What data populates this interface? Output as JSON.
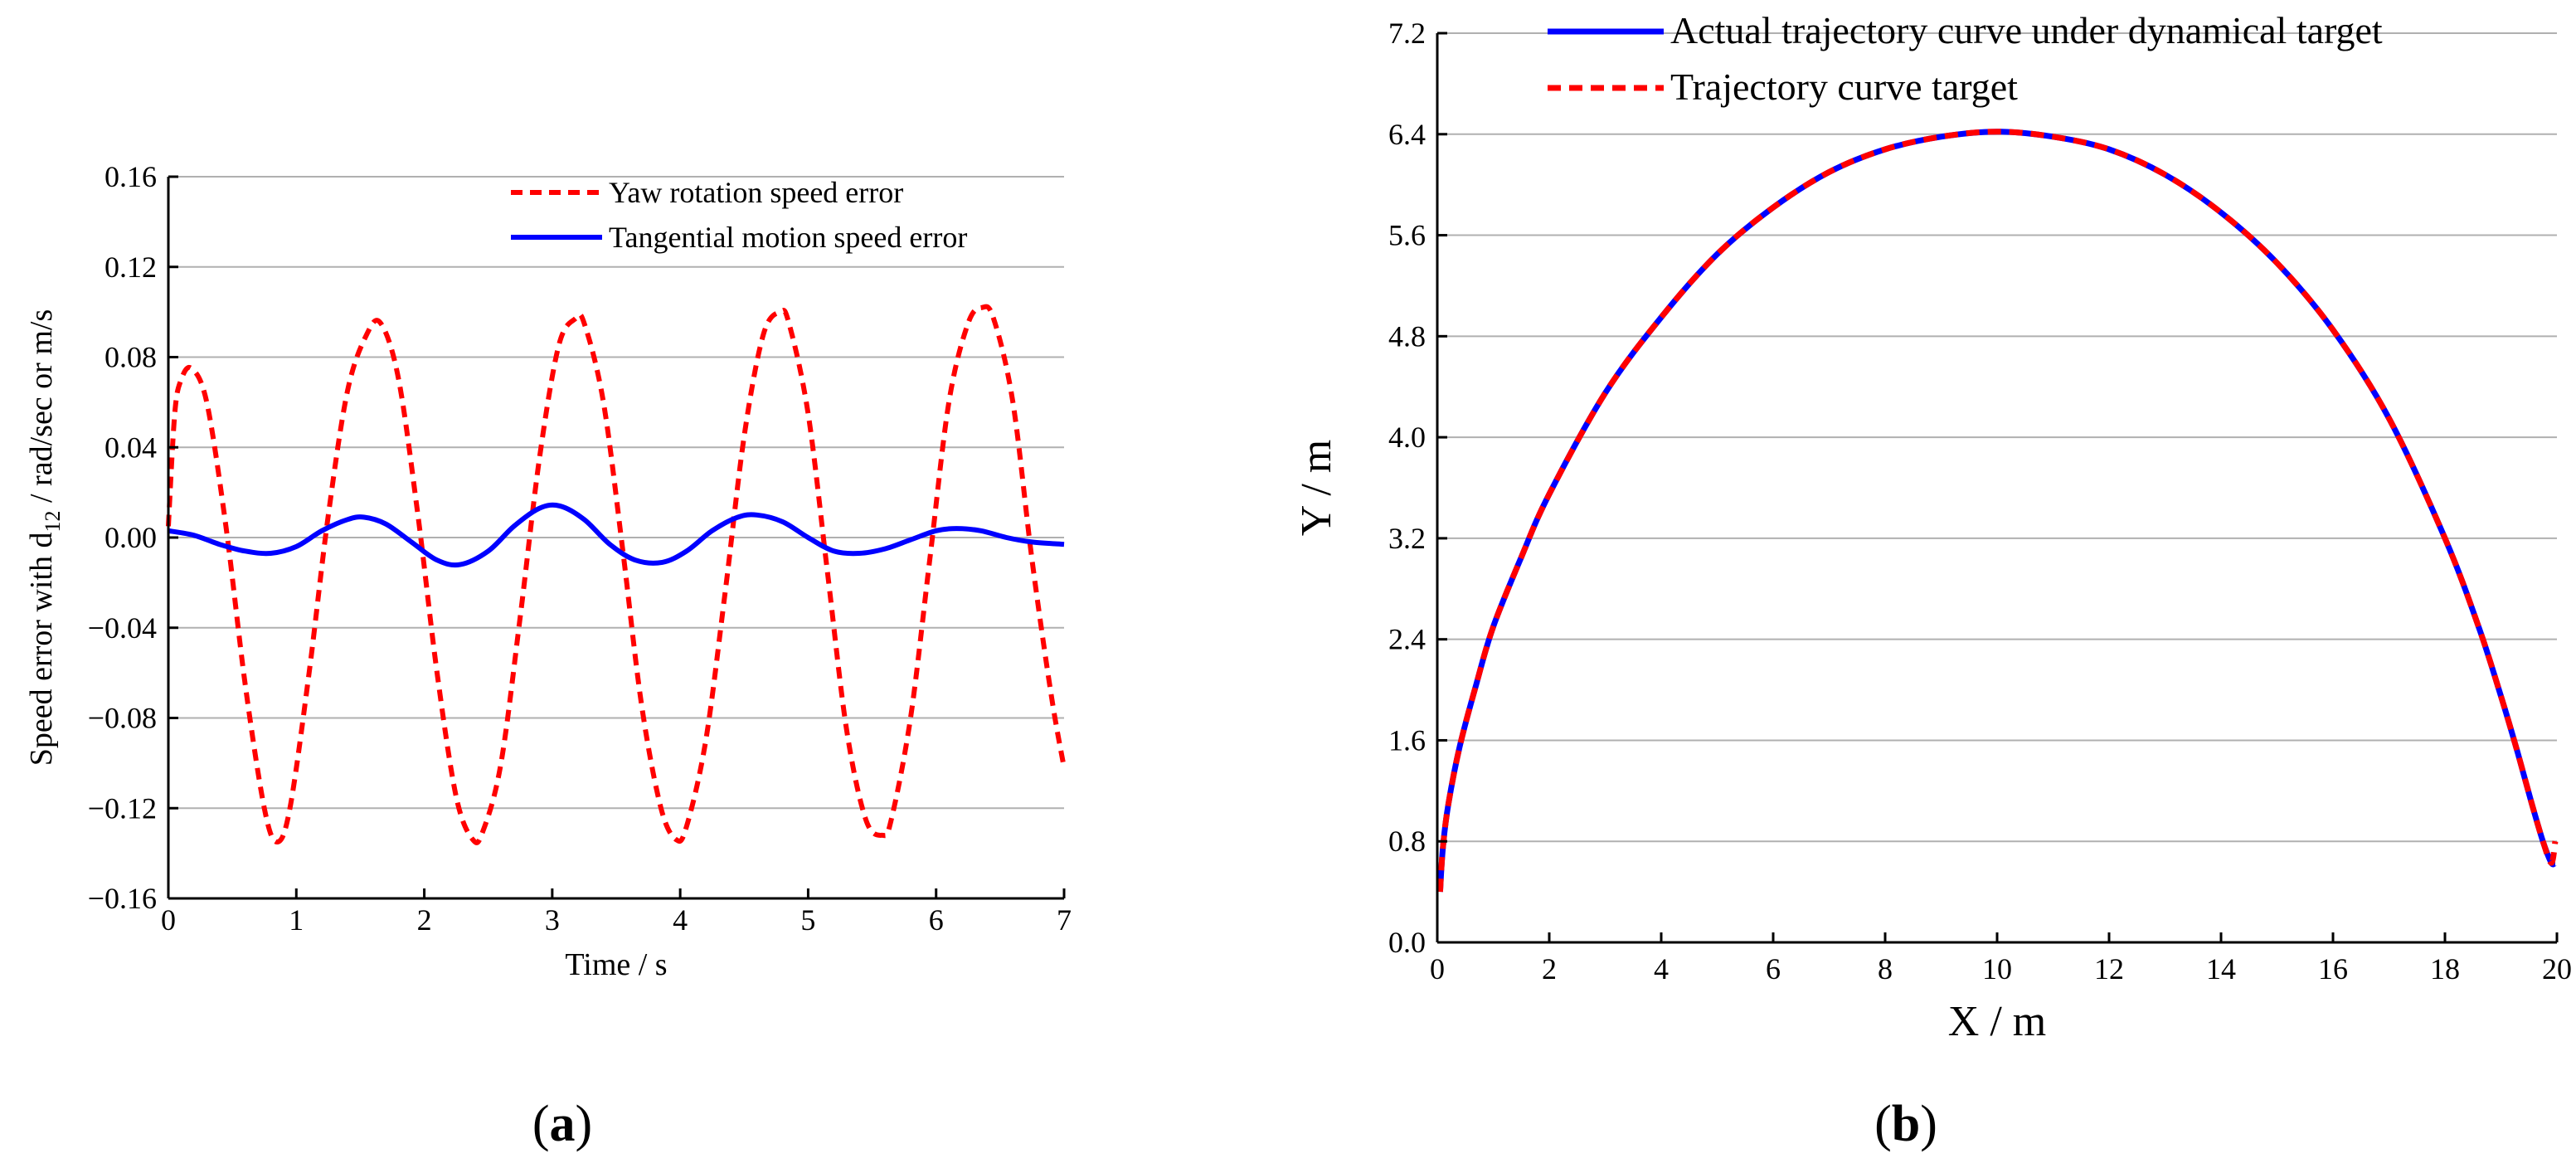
{
  "chart_data": [
    {
      "id": "a",
      "type": "line",
      "caption": "a",
      "xlabel": "Time / s",
      "ylabel_prefix": "Speed error  with  d",
      "ylabel_sub": "12",
      "ylabel_suffix": "  / rad/sec or m/s",
      "xlim": [
        0,
        7
      ],
      "ylim": [
        -0.16,
        0.16
      ],
      "xticks": [
        0,
        1,
        2,
        3,
        4,
        5,
        6,
        7
      ],
      "xtick_labels": [
        "0",
        "1",
        "2",
        "3",
        "4",
        "5",
        "6",
        "7"
      ],
      "yticks": [
        -0.16,
        -0.12,
        -0.08,
        -0.04,
        0,
        0.04,
        0.08,
        0.12,
        0.16
      ],
      "ytick_labels": [
        "−0.16",
        "−0.12",
        "−0.08",
        "−0.04",
        "0.00",
        "0.04",
        "0.08",
        "0.12",
        "0.16"
      ],
      "grid": "horizontal",
      "legend_position": "top-right",
      "series": [
        {
          "name": "Yaw rotation speed error",
          "color": "#ff0000",
          "style": "dashed",
          "x": [
            0,
            0.05,
            0.1,
            0.18,
            0.3,
            0.45,
            0.6,
            0.75,
            0.85,
            0.95,
            1.1,
            1.25,
            1.4,
            1.55,
            1.66,
            1.8,
            1.95,
            2.1,
            2.25,
            2.38,
            2.46,
            2.6,
            2.75,
            2.9,
            3.05,
            3.18,
            3.25,
            3.4,
            3.55,
            3.7,
            3.85,
            3.97,
            4.05,
            4.2,
            4.35,
            4.5,
            4.65,
            4.78,
            4.85,
            5.0,
            5.15,
            5.3,
            5.45,
            5.58,
            5.65,
            5.8,
            5.95,
            6.1,
            6.25,
            6.36,
            6.45,
            6.6,
            6.75,
            6.9,
            7.0
          ],
          "y": [
            0.005,
            0.055,
            0.07,
            0.075,
            0.06,
            0.005,
            -0.065,
            -0.12,
            -0.135,
            -0.12,
            -0.06,
            0.01,
            0.065,
            0.09,
            0.095,
            0.07,
            0.01,
            -0.06,
            -0.115,
            -0.134,
            -0.13,
            -0.1,
            -0.035,
            0.035,
            0.085,
            0.097,
            0.095,
            0.06,
            -0.005,
            -0.075,
            -0.12,
            -0.134,
            -0.128,
            -0.09,
            -0.025,
            0.045,
            0.09,
            0.1,
            0.095,
            0.055,
            -0.015,
            -0.085,
            -0.125,
            -0.132,
            -0.125,
            -0.08,
            -0.01,
            0.06,
            0.095,
            0.102,
            0.097,
            0.06,
            -0.01,
            -0.07,
            -0.102
          ]
        },
        {
          "name": "Tangential motion speed error",
          "color": "#0000ff",
          "style": "solid",
          "x": [
            0,
            0.2,
            0.4,
            0.6,
            0.8,
            1.0,
            1.2,
            1.4,
            1.53,
            1.7,
            1.9,
            2.1,
            2.28,
            2.5,
            2.7,
            2.9,
            3.06,
            3.25,
            3.45,
            3.65,
            3.86,
            4.05,
            4.25,
            4.45,
            4.6,
            4.8,
            5.0,
            5.2,
            5.4,
            5.6,
            5.8,
            6.0,
            6.16,
            6.35,
            6.55,
            6.75,
            7.0
          ],
          "y": [
            0.003,
            0.001,
            -0.003,
            -0.006,
            -0.007,
            -0.004,
            0.003,
            0.008,
            0.009,
            0.006,
            -0.002,
            -0.01,
            -0.012,
            -0.006,
            0.005,
            0.013,
            0.014,
            0.008,
            -0.003,
            -0.01,
            -0.011,
            -0.006,
            0.003,
            0.009,
            0.01,
            0.007,
            0.0,
            -0.006,
            -0.007,
            -0.005,
            -0.001,
            0.003,
            0.004,
            0.003,
            0.0,
            -0.002,
            -0.003
          ]
        }
      ]
    },
    {
      "id": "b",
      "type": "line",
      "caption": "b",
      "xlabel": "X / m",
      "ylabel": "Y / m",
      "xlim": [
        0,
        20
      ],
      "ylim": [
        0,
        7.2
      ],
      "xticks": [
        0,
        2,
        4,
        6,
        8,
        10,
        12,
        14,
        16,
        18,
        20
      ],
      "xtick_labels": [
        "0",
        "2",
        "4",
        "6",
        "8",
        "10",
        "12",
        "14",
        "16",
        "18",
        "20"
      ],
      "yticks": [
        0,
        0.8,
        1.6,
        2.4,
        3.2,
        4.0,
        4.8,
        5.6,
        6.4,
        7.2
      ],
      "ytick_labels": [
        "0.0",
        "0.8",
        "1.6",
        "2.4",
        "3.2",
        "4.0",
        "4.8",
        "5.6",
        "6.4",
        "7.2"
      ],
      "grid": "horizontal",
      "legend_position": "top",
      "series": [
        {
          "name": "Actual trajectory curve under dynamical target",
          "color": "#0000ff",
          "style": "solid",
          "x": [
            0.05,
            0.1,
            0.2,
            0.4,
            0.7,
            1.0,
            1.5,
            2.0,
            3.0,
            4.0,
            5.0,
            6.0,
            7.0,
            8.0,
            9.0,
            10.0,
            11.0,
            12.0,
            13.0,
            14.0,
            15.0,
            16.0,
            17.0,
            18.0,
            18.6,
            19.0,
            19.3,
            19.55,
            19.75,
            19.9,
            19.97
          ],
          "y": [
            0.4,
            0.75,
            1.1,
            1.55,
            2.05,
            2.5,
            3.05,
            3.55,
            4.35,
            4.95,
            5.45,
            5.82,
            6.1,
            6.28,
            6.38,
            6.42,
            6.38,
            6.28,
            6.08,
            5.78,
            5.38,
            4.85,
            4.15,
            3.2,
            2.5,
            1.95,
            1.5,
            1.1,
            0.8,
            0.63,
            0.63
          ]
        },
        {
          "name": "Trajectory curve target",
          "color": "#ff0000",
          "style": "dashed",
          "x": [
            0.05,
            0.1,
            0.2,
            0.4,
            0.7,
            1.0,
            1.5,
            2.0,
            3.0,
            4.0,
            5.0,
            6.0,
            7.0,
            8.0,
            9.0,
            10.0,
            11.0,
            12.0,
            13.0,
            14.0,
            15.0,
            16.0,
            17.0,
            18.0,
            18.6,
            19.0,
            19.3,
            19.55,
            19.75,
            19.9,
            19.97
          ],
          "y": [
            0.4,
            0.75,
            1.1,
            1.55,
            2.05,
            2.5,
            3.05,
            3.55,
            4.35,
            4.95,
            5.45,
            5.82,
            6.1,
            6.28,
            6.38,
            6.42,
            6.38,
            6.28,
            6.08,
            5.78,
            5.38,
            4.85,
            4.15,
            3.2,
            2.5,
            1.95,
            1.5,
            1.1,
            0.8,
            0.63,
            0.8
          ]
        }
      ]
    }
  ]
}
